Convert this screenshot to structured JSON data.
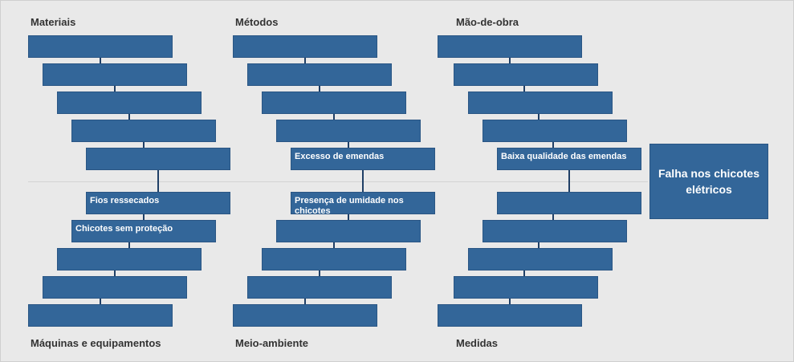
{
  "effect": "Falha nos chicotes elétricos",
  "categories": {
    "materiais": "Materiais",
    "metodos": "Métodos",
    "mao_de_obra": "Mão-de-obra",
    "maquinas": "Máquinas e equipamentos",
    "meio_ambiente": "Meio-ambiente",
    "medidas": "Medidas"
  },
  "causes": {
    "materiais": [
      "",
      "",
      "",
      "",
      ""
    ],
    "metodos": [
      "",
      "",
      "",
      "",
      "Excesso de emendas"
    ],
    "mao_de_obra": [
      "",
      "",
      "",
      "",
      "Baixa qualidade das emendas"
    ],
    "maquinas": [
      "Fios ressecados",
      "Chicotes sem proteção",
      "",
      "",
      ""
    ],
    "meio_ambiente": [
      "Presença de umidade nos chicotes",
      "",
      "",
      "",
      ""
    ],
    "medidas": [
      "",
      "",
      "",
      "",
      ""
    ]
  },
  "colors": {
    "box_fill": "#336699",
    "connector": "#1f3f66",
    "background": "#e9e9e9"
  }
}
